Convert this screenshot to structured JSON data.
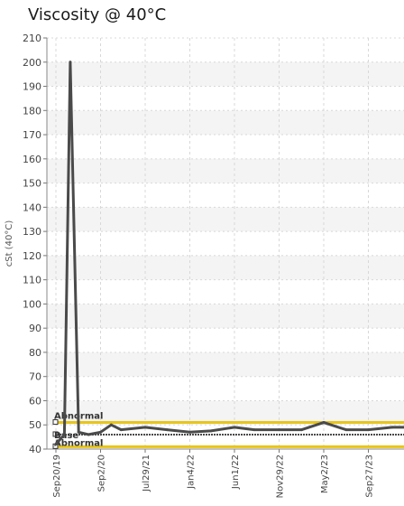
{
  "chart_data": {
    "type": "line",
    "title": "Viscosity @ 40°C",
    "ylabel": "cSt (40°C)",
    "xlabel": "",
    "ylim": [
      40,
      210
    ],
    "yticks": [
      40,
      50,
      60,
      70,
      80,
      90,
      100,
      110,
      120,
      130,
      140,
      150,
      160,
      170,
      180,
      190,
      200,
      210
    ],
    "xticks": [
      "Sep20/19",
      "Sep2/20",
      "Jul29/21",
      "Jan4/22",
      "Jun1/22",
      "Nov29/22",
      "May2/23",
      "Sep27/23"
    ],
    "grid": true,
    "series": [
      {
        "name": "",
        "color": "#4a4a4a",
        "points": [
          [
            "Sep20/19",
            42
          ],
          [
            "Nov25/19",
            46
          ],
          [
            "Jan10/20",
            200
          ],
          [
            "Mar15/20",
            47
          ],
          [
            "Jun1/20",
            46
          ],
          [
            "Sep2/20",
            47
          ],
          [
            "Nov20/20",
            50
          ],
          [
            "Feb1/21",
            48
          ],
          [
            "Jul29/21",
            49
          ],
          [
            "Oct15/21",
            48
          ],
          [
            "Jan4/22",
            47
          ],
          [
            "Mar15/22",
            47.5
          ],
          [
            "Jun1/22",
            49
          ],
          [
            "Aug20/22",
            48
          ],
          [
            "Nov29/22",
            48
          ],
          [
            "Feb15/23",
            48
          ],
          [
            "May2/23",
            51
          ],
          [
            "Jul15/23",
            48
          ],
          [
            "Sep27/23",
            48
          ],
          [
            "Dec15/23",
            49
          ],
          [
            "Mar1/24",
            49
          ]
        ]
      }
    ],
    "reference_lines": [
      {
        "label": "Abnormal",
        "value": 51,
        "color": "#e8c51a",
        "style": "solid"
      },
      {
        "label": "Base",
        "value": 46,
        "color": "#4a4a4a",
        "style": "dashed"
      },
      {
        "label": "Abnormal",
        "value": 41,
        "color": "#e8c51a",
        "style": "solid"
      }
    ]
  }
}
